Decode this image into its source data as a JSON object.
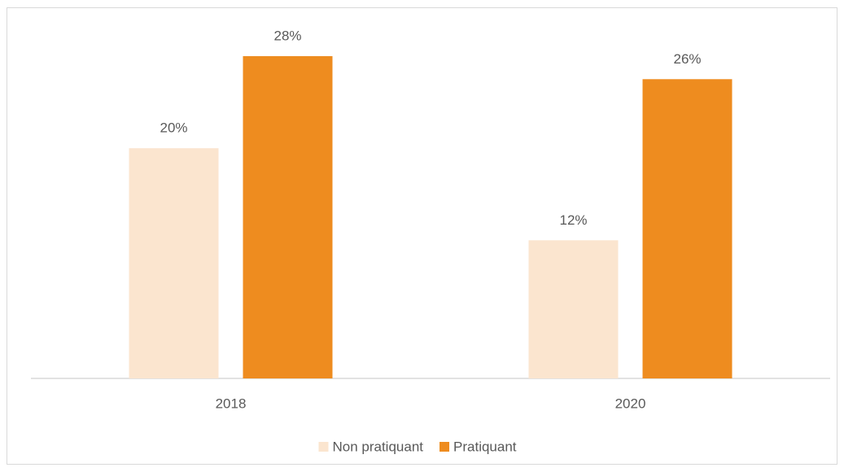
{
  "chart_data": {
    "type": "bar",
    "categories": [
      "2018",
      "2020"
    ],
    "series": [
      {
        "name": "Non pratiquant",
        "color": "#fbe5cf",
        "values": [
          20,
          12
        ],
        "value_labels": [
          "20%",
          "12%"
        ]
      },
      {
        "name": "Pratiquant",
        "color": "#ee8c1f",
        "values": [
          28,
          26
        ],
        "value_labels": [
          "28%",
          "26%"
        ]
      }
    ],
    "legend": "bottom"
  }
}
